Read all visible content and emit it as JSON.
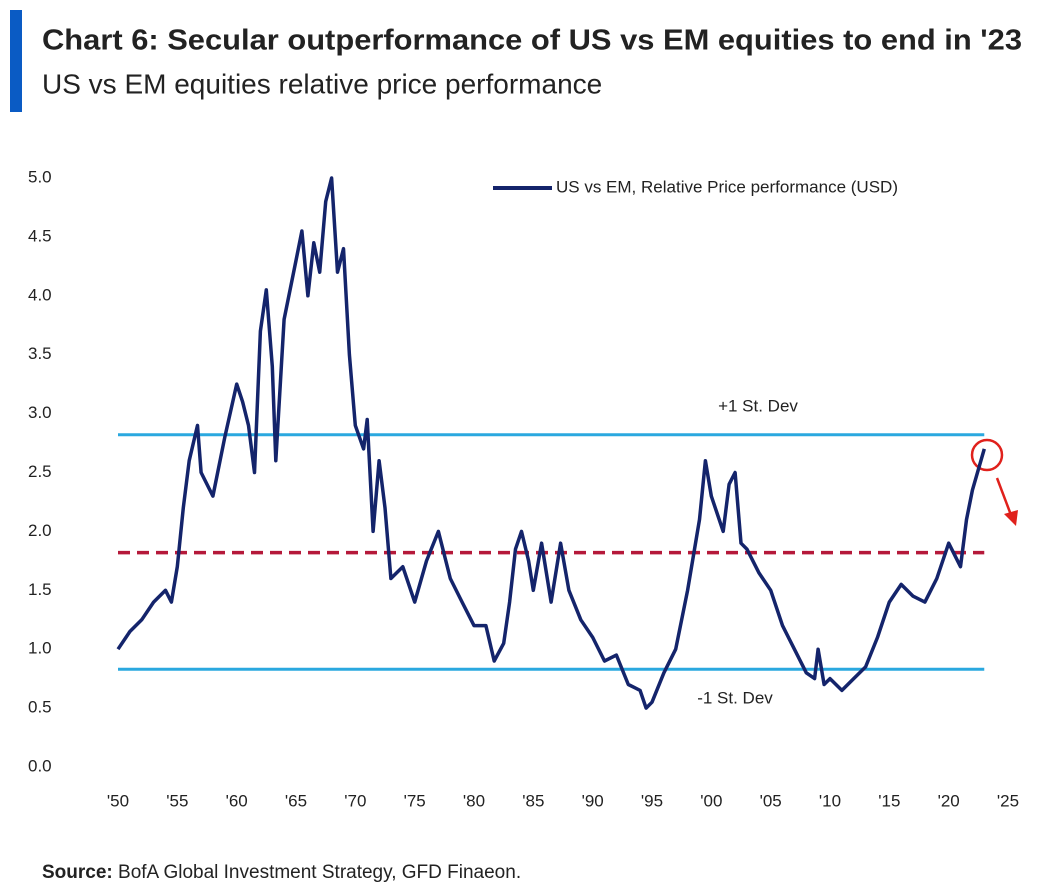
{
  "header": {
    "title": "Chart 6: Secular outperformance of US vs EM equities to end in '23",
    "subtitle": "US vs EM equities relative price performance"
  },
  "chart_data": {
    "type": "line",
    "x": [
      1950,
      1951,
      1952,
      1953,
      1954,
      1954.5,
      1955,
      1955.5,
      1956,
      1956.7,
      1957,
      1958,
      1959,
      1960,
      1960.5,
      1961,
      1961.5,
      1962,
      1962.5,
      1963,
      1963.3,
      1964,
      1965,
      1965.5,
      1966,
      1966.5,
      1967,
      1967.5,
      1968,
      1968.5,
      1969,
      1969.5,
      1970,
      1970.7,
      1971,
      1971.5,
      1972,
      1972.5,
      1973,
      1974,
      1975,
      1976,
      1977,
      1978,
      1979,
      1980,
      1981,
      1981.7,
      1982.5,
      1983,
      1983.5,
      1984,
      1984.6,
      1985,
      1985.7,
      1986.5,
      1987.3,
      1988,
      1989,
      1990,
      1991,
      1992,
      1993,
      1994,
      1994.5,
      1995,
      1996,
      1997,
      1998,
      1999,
      1999.5,
      2000,
      2001,
      2001.5,
      2002,
      2002.5,
      2003,
      2004,
      2005,
      2006,
      2007,
      2008,
      2008.7,
      2009,
      2009.5,
      2010,
      2011,
      2012,
      2013,
      2014,
      2015,
      2016,
      2017,
      2018,
      2019,
      2020,
      2021,
      2021.5,
      2022,
      2023
    ],
    "series": [
      {
        "name": "US vs EM, Relative Price performance (USD)",
        "color": "#14246b",
        "values": [
          1.0,
          1.15,
          1.25,
          1.4,
          1.5,
          1.4,
          1.7,
          2.2,
          2.6,
          2.9,
          2.5,
          2.3,
          2.8,
          3.25,
          3.1,
          2.9,
          2.5,
          3.7,
          4.05,
          3.4,
          2.6,
          3.8,
          4.3,
          4.55,
          4.0,
          4.45,
          4.2,
          4.8,
          5.0,
          4.2,
          4.4,
          3.5,
          2.9,
          2.7,
          2.95,
          2.0,
          2.6,
          2.2,
          1.6,
          1.7,
          1.4,
          1.75,
          2.0,
          1.6,
          1.4,
          1.2,
          1.2,
          0.9,
          1.05,
          1.4,
          1.85,
          2.0,
          1.75,
          1.5,
          1.9,
          1.4,
          1.9,
          1.5,
          1.25,
          1.1,
          0.9,
          0.95,
          0.7,
          0.65,
          0.5,
          0.55,
          0.8,
          1.0,
          1.5,
          2.1,
          2.6,
          2.3,
          2.0,
          2.4,
          2.5,
          1.9,
          1.85,
          1.65,
          1.5,
          1.2,
          1.0,
          0.8,
          0.75,
          1.0,
          0.7,
          0.75,
          0.65,
          0.75,
          0.85,
          1.1,
          1.4,
          1.55,
          1.45,
          1.4,
          1.6,
          1.9,
          1.7,
          2.1,
          2.35,
          2.7
        ]
      }
    ],
    "reference_lines": [
      {
        "value": 2.82,
        "label": "+1 St. Dev",
        "color": "#2aa8df",
        "style": "solid"
      },
      {
        "value": 1.82,
        "color": "#b5193a",
        "style": "dashed"
      },
      {
        "value": 0.83,
        "label": "-1 St. Dev",
        "color": "#2aa8df",
        "style": "solid"
      }
    ],
    "xlim": [
      1950,
      2025
    ],
    "xticks": [
      {
        "value": 1950,
        "label": "'50"
      },
      {
        "value": 1955,
        "label": "'55"
      },
      {
        "value": 1960,
        "label": "'60"
      },
      {
        "value": 1965,
        "label": "'65"
      },
      {
        "value": 1970,
        "label": "'70"
      },
      {
        "value": 1975,
        "label": "'75"
      },
      {
        "value": 1980,
        "label": "'80"
      },
      {
        "value": 1985,
        "label": "'85"
      },
      {
        "value": 1990,
        "label": "'90"
      },
      {
        "value": 1995,
        "label": "'95"
      },
      {
        "value": 2000,
        "label": "'00"
      },
      {
        "value": 2005,
        "label": "'05"
      },
      {
        "value": 2010,
        "label": "'10"
      },
      {
        "value": 2015,
        "label": "'15"
      },
      {
        "value": 2020,
        "label": "'20"
      },
      {
        "value": 2025,
        "label": "'25"
      }
    ],
    "ylim": [
      0,
      5
    ],
    "yticks": [
      {
        "value": 0,
        "label": "0.0"
      },
      0.5,
      {
        "value": 1,
        "label": "1.0"
      },
      1.5,
      {
        "value": 2,
        "label": "2.0"
      },
      2.5,
      {
        "value": 3,
        "label": "3.0"
      },
      3.5,
      {
        "value": 4,
        "label": "4.0"
      },
      4.5,
      {
        "value": 5,
        "label": "5.0"
      }
    ],
    "grid": false
  },
  "source": {
    "label": "Source:",
    "text": "BofA Global Investment Strategy, GFD Finaeon."
  }
}
